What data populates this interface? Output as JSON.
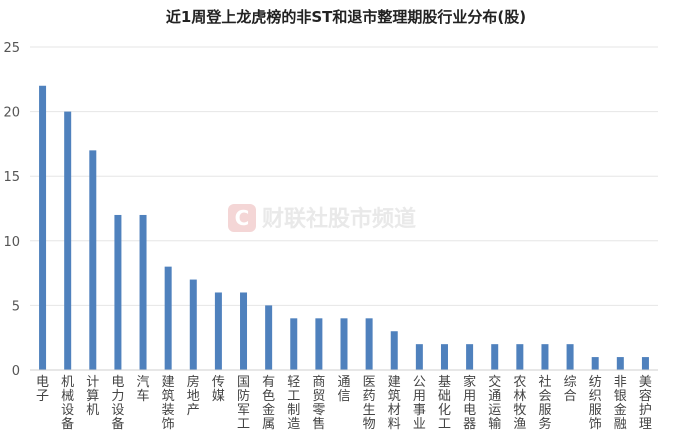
{
  "chart_data": {
    "type": "bar",
    "title": "近1周登上龙虎榜的非ST和退市整理期股行业分布(股)",
    "xlabel": "",
    "ylabel": "",
    "ylim": [
      0,
      25
    ],
    "yticks": [
      0,
      5,
      10,
      15,
      20,
      25
    ],
    "grid": true,
    "bar_color": "#4F81BD",
    "categories": [
      "电子",
      "机械设备",
      "计算机",
      "电力设备",
      "汽车",
      "建筑装饰",
      "房地产",
      "传媒",
      "国防军工",
      "有色金属",
      "轻工制造",
      "商贸零售",
      "通信",
      "医药生物",
      "建筑材料",
      "公用事业",
      "基础化工",
      "家用电器",
      "交通运输",
      "农林牧渔",
      "社会服务",
      "综合",
      "纺织服饰",
      "非银金融",
      "美容护理"
    ],
    "values": [
      22,
      20,
      17,
      12,
      12,
      8,
      7,
      6,
      6,
      5,
      4,
      4,
      4,
      4,
      3,
      2,
      2,
      2,
      2,
      2,
      2,
      2,
      1,
      1,
      1
    ]
  },
  "watermark": {
    "logo_letter": "C",
    "text": "财联社股市频道",
    "logo_color": "#f2c9c9"
  }
}
